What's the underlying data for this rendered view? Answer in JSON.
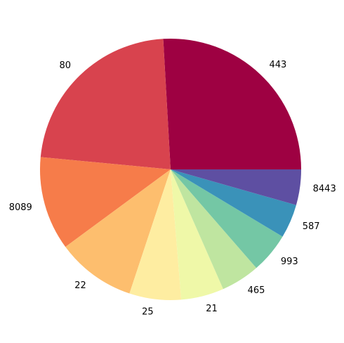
{
  "chart_data": {
    "type": "pie",
    "categories": [
      "443",
      "80",
      "8089",
      "22",
      "25",
      "21",
      "465",
      "993",
      "587",
      "8443"
    ],
    "values": [
      25.9,
      22.6,
      11.6,
      9.8,
      6.4,
      5.3,
      4.8,
      5.0,
      4.2,
      4.4
    ],
    "colors": [
      "#9e0142",
      "#d8434e",
      "#f67c4a",
      "#fdbe6e",
      "#feeda1",
      "#eff8a8",
      "#bfe5a0",
      "#74c7a5",
      "#3a92b9",
      "#5e4fa2"
    ],
    "start_angle": 0,
    "direction": "counterclockwise"
  }
}
